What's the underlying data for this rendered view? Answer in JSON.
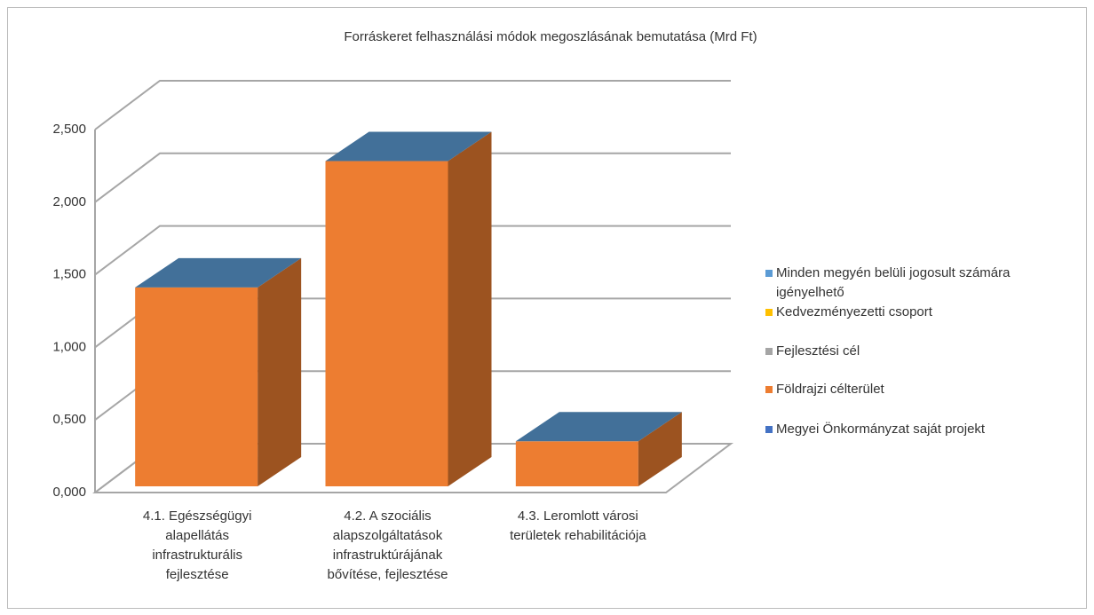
{
  "chart_data": {
    "type": "bar3d_stacked",
    "title": "Forráskeret felhasználási módok megoszlásának bemutatása (Mrd Ft)",
    "categories": [
      "4.1. Egészségügyi alapellátás infrastrukturális fejlesztése",
      "4.2. A szociális alapszolgáltatások infrastruktúrájának bővítése, fejlesztése",
      "4.3. Leromlott városi területek rehabilitációja"
    ],
    "series": [
      {
        "name": "Megyei Önkormányzat saját projekt",
        "color": "#4472c4",
        "values": [
          0,
          0,
          0
        ]
      },
      {
        "name": "Földrajzi célterület",
        "color": "#ed7d31",
        "values": [
          1.37,
          2.24,
          0.31
        ]
      },
      {
        "name": "Fejlesztési cél",
        "color": "#a5a5a5",
        "values": [
          0,
          0,
          0
        ]
      },
      {
        "name": "Kedvezményezetti csoport",
        "color": "#ffc000",
        "values": [
          0,
          0,
          0
        ]
      },
      {
        "name": "Minden megyén belüli jogosult számára igényelhető",
        "color": "#5b9bd5",
        "values": [
          0,
          0,
          0
        ]
      }
    ],
    "ylim": [
      0,
      2.5
    ],
    "yticks": [
      {
        "value": 0,
        "label": "0,000"
      },
      {
        "value": 0.5,
        "label": "0,500"
      },
      {
        "value": 1,
        "label": "1,000"
      },
      {
        "value": 1.5,
        "label": "1,500"
      },
      {
        "value": 2,
        "label": "2,000"
      },
      {
        "value": 2.5,
        "label": "2,500"
      }
    ],
    "grid": true,
    "legend": "right"
  }
}
